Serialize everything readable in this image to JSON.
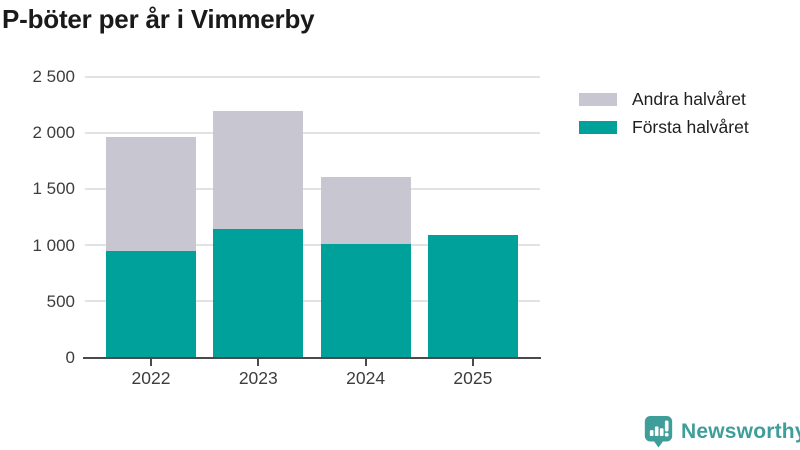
{
  "title": "P-böter per år i Vimmerby",
  "colors": {
    "forsta_halvaret": "#00a19a",
    "andra_halvaret": "#c7c6d1",
    "gridline": "#e2e2e4",
    "axis": "#4a4a4a",
    "tick_text": "#3d3d3d",
    "title_text": "#1a1a1a",
    "brand_teal": "#3f9e99"
  },
  "legend": [
    {
      "label": "Andra halvåret",
      "color": "#c7c6d1"
    },
    {
      "label": "Första halvåret",
      "color": "#00a19a"
    }
  ],
  "chart_data": {
    "type": "bar",
    "stacked": true,
    "title": "P-böter per år i Vimmerby",
    "categories": [
      "2022",
      "2023",
      "2024",
      "2025"
    ],
    "series": [
      {
        "name": "Första halvåret",
        "color": "#00a19a",
        "values": [
          950,
          1140,
          1010,
          1090
        ]
      },
      {
        "name": "Andra halvåret",
        "color": "#c7c6d1",
        "values": [
          1010,
          1050,
          600,
          0
        ]
      }
    ],
    "totals": [
      1960,
      2190,
      1610,
      1090
    ],
    "xlabel": "",
    "ylabel": "",
    "ylim": [
      0,
      2500
    ],
    "yticks": [
      0,
      500,
      1000,
      1500,
      2000,
      2500
    ],
    "ytick_labels": [
      "0",
      "500",
      "1 000",
      "1 500",
      "2 000",
      "2 500"
    ],
    "grid": true,
    "legend_position": "top-right"
  },
  "footer": {
    "brand_name": "Newsworthy",
    "logo_icon": "newsworthy-bar-chart-bubble-icon"
  }
}
